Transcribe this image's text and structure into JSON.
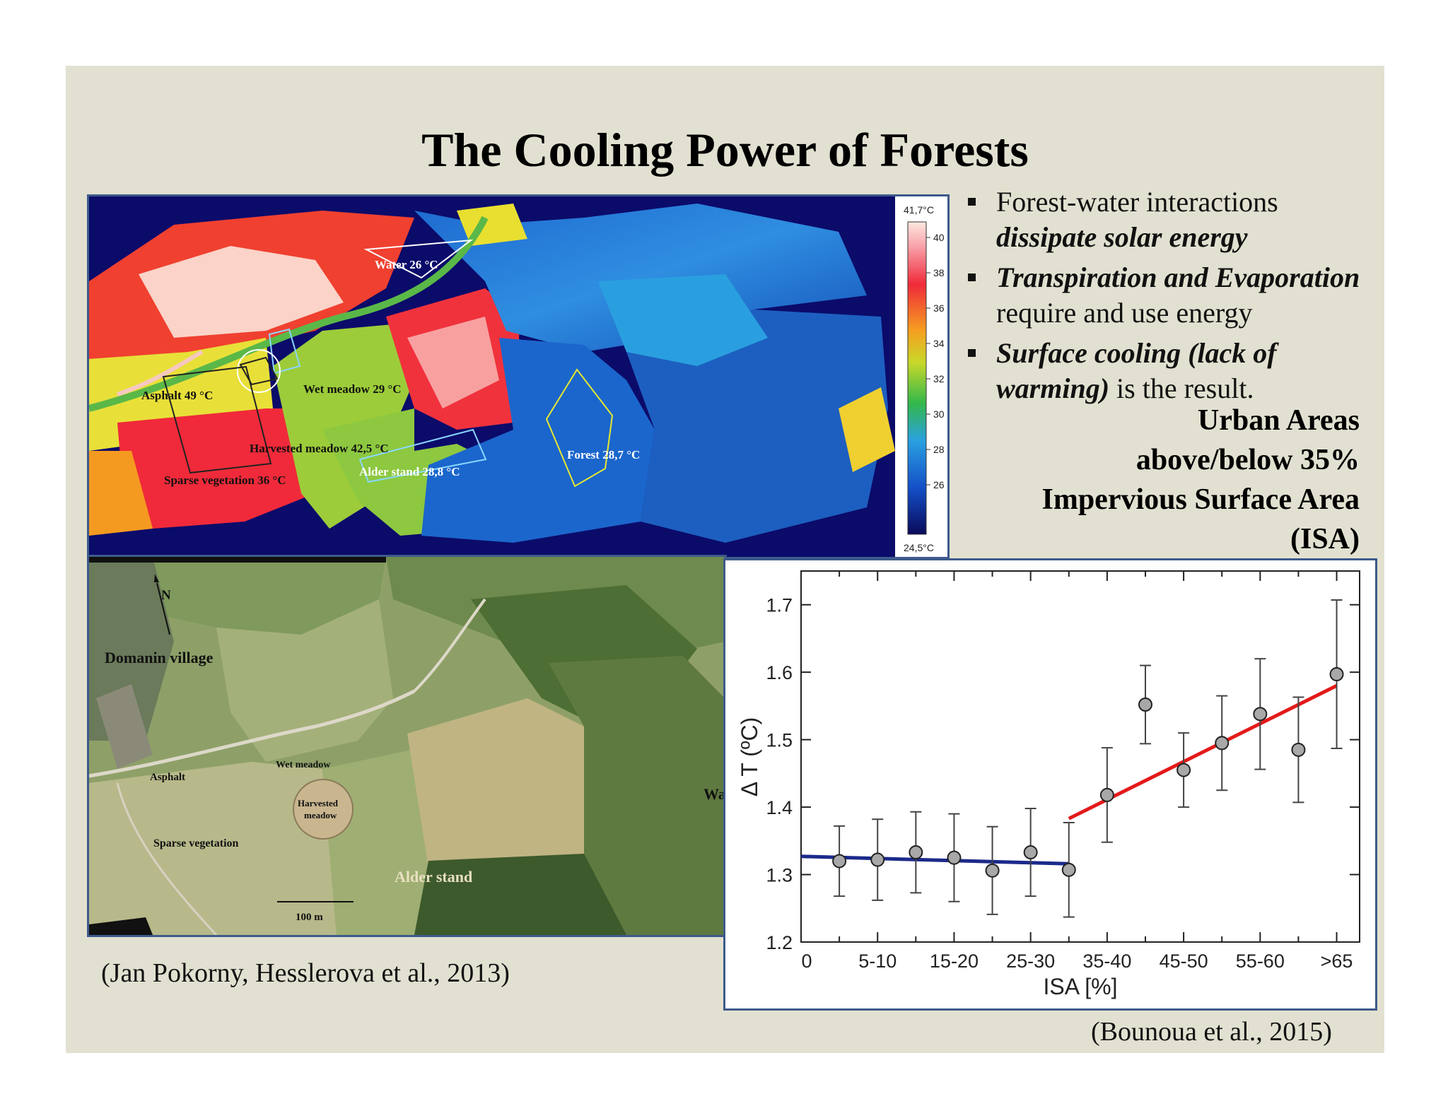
{
  "title": "The Cooling Power of Forests",
  "bullets": [
    {
      "plain_a": "Forest-water interactions",
      "bold_a": "",
      "bold_b": "dissipate solar energy",
      "plain_b": ""
    },
    {
      "plain_a": "",
      "bold_a": "Transpiration and Evaporation",
      "bold_b": "",
      "plain_b": "require and use energy"
    },
    {
      "plain_a": "",
      "bold_a": "Surface cooling (lack of",
      "bold_b": "warming)",
      "plain_b": " is the result."
    }
  ],
  "isa_heading": [
    "Urban Areas",
    "above/below 35%",
    "Impervious Surface Area",
    "(ISA)"
  ],
  "thermal_map": {
    "labels": {
      "water": "Water 26 °C",
      "asphalt": "Asphalt 49 °C",
      "wet_meadow": "Wet meadow 29 °C",
      "harvested_meadow": "Harvested meadow 42,5 °C",
      "sparse_vegetation": "Sparse vegetation 36 °C",
      "alder_stand": "Alder stand 28,8 °C",
      "forest": "Forest 28,7 °C"
    },
    "colorbar": {
      "max_label": "41,7°C",
      "min_label": "24,5°C",
      "ticks": [
        "40",
        "38",
        "36",
        "34",
        "32",
        "30",
        "28",
        "26"
      ]
    }
  },
  "aerial_map": {
    "labels": {
      "north": "N",
      "village": "Domanin village",
      "asphalt": "Asphalt",
      "wet_meadow": "Wet meadow",
      "harvested_line1": "Harvested",
      "harvested_line2": "meadow",
      "sparse_vegetation": "Sparse vegetation",
      "alder_stand": "Alder stand",
      "scale": "100 m",
      "cut_label": "Wa"
    }
  },
  "chart_data": {
    "type": "scatter",
    "xlabel": "ISA [%]",
    "ylabel": "Δ T (ºC)",
    "ylim": [
      1.2,
      1.75
    ],
    "yticks": [
      "1.2",
      "1.3",
      "1.4",
      "1.5",
      "1.6",
      "1.7"
    ],
    "xticks": [
      "0",
      "5-10",
      "15-20",
      "25-30",
      "35-40",
      "45-50",
      "55-60",
      ">65"
    ],
    "x": [
      1,
      2,
      3,
      4,
      5,
      6,
      7,
      8,
      9,
      10,
      11,
      12,
      13,
      14
    ],
    "y": [
      1.32,
      1.322,
      1.333,
      1.325,
      1.306,
      1.333,
      1.307,
      1.418,
      1.552,
      1.455,
      1.495,
      1.538,
      1.485,
      1.597
    ],
    "y_err": [
      0.052,
      0.06,
      0.06,
      0.065,
      0.065,
      0.065,
      0.07,
      0.07,
      0.058,
      0.055,
      0.07,
      0.082,
      0.078,
      0.11
    ],
    "fits": [
      {
        "color": "#1b2a8a",
        "x": [
          0,
          7
        ],
        "y": [
          1.327,
          1.316
        ]
      },
      {
        "color": "#e31a1a",
        "x": [
          7,
          14
        ],
        "y": [
          1.383,
          1.58
        ]
      }
    ],
    "grid": false
  },
  "citation_left": "(Jan Pokorny, Hesslerova et al., 2013)",
  "citation_right": "(Bounoua et al., 2015)"
}
